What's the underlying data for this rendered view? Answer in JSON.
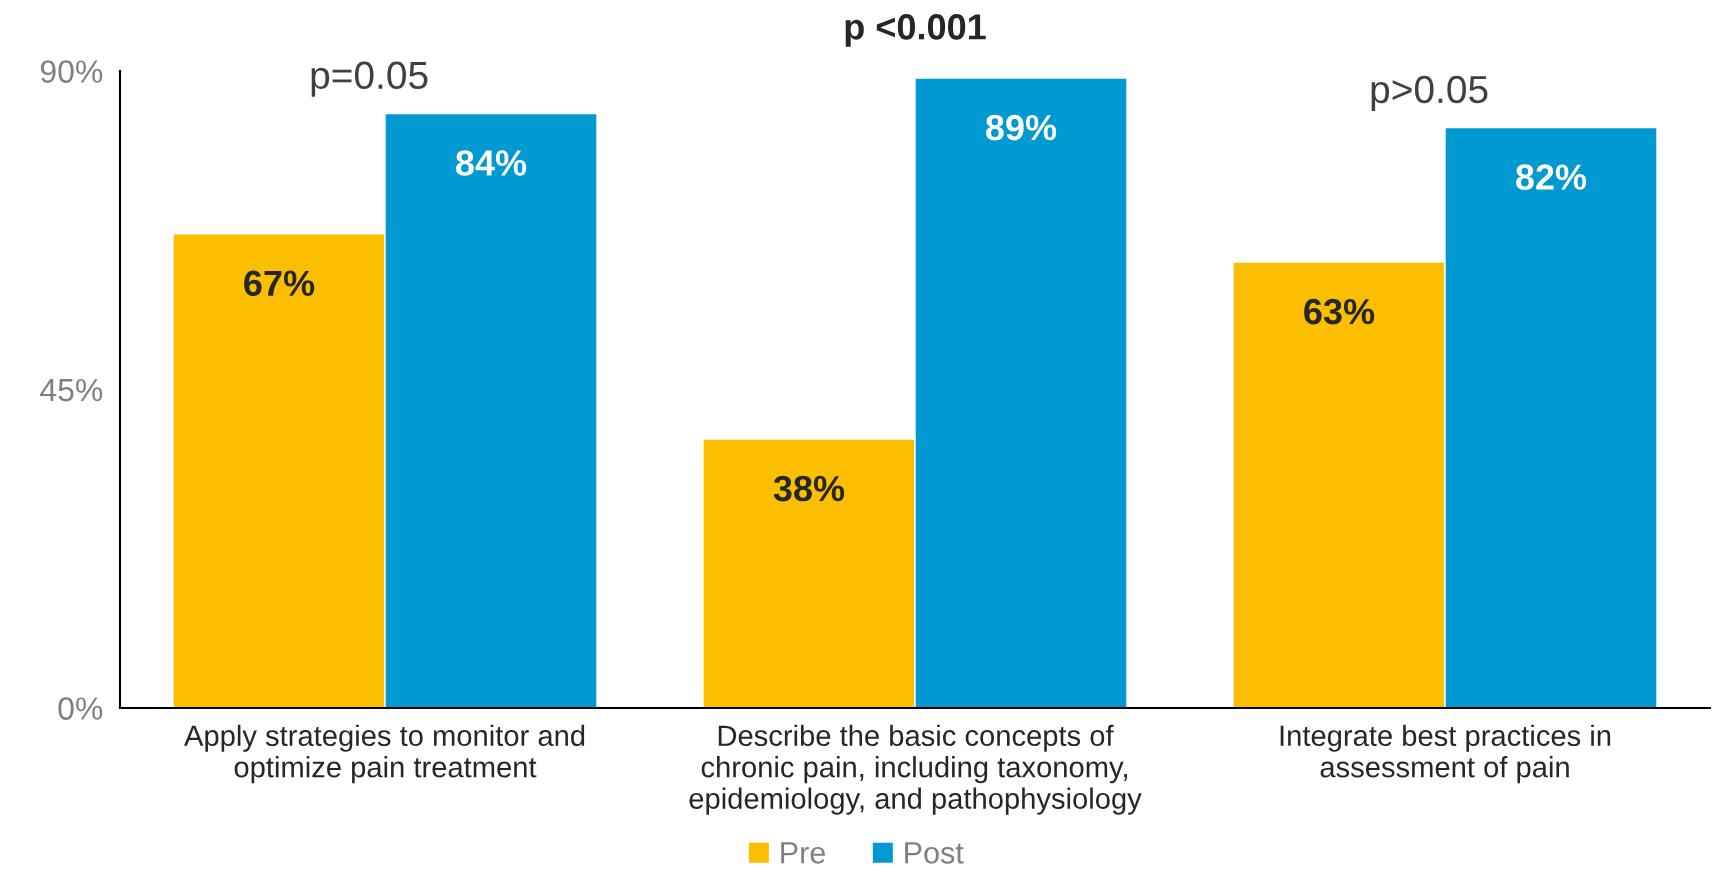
{
  "chart_data": {
    "type": "bar",
    "title": "p <0.001",
    "categories": [
      "Apply strategies to monitor and\noptimize pain treatment",
      "Describe the basic concepts of\nchronic pain, including taxonomy,\nepidemiology, and pathophysiology",
      "Integrate best practices in\nassessment of pain"
    ],
    "series": [
      {
        "name": "Pre",
        "color": "#fcbf00",
        "values": [
          67,
          38,
          63
        ],
        "value_labels": [
          "67%",
          "38%",
          "63%"
        ]
      },
      {
        "name": "Post",
        "color": "#0099d1",
        "values": [
          84,
          89,
          82
        ],
        "value_labels": [
          "84%",
          "89%",
          "82%"
        ]
      }
    ],
    "ylim": [
      0,
      90
    ],
    "yticks": [
      {
        "value": 0,
        "label": "0%"
      },
      {
        "value": 45,
        "label": "45%"
      },
      {
        "value": 90,
        "label": "90%"
      }
    ],
    "annotations": [
      "p=0.05",
      "p>0.05"
    ],
    "grid": false,
    "legend": "bottom"
  }
}
